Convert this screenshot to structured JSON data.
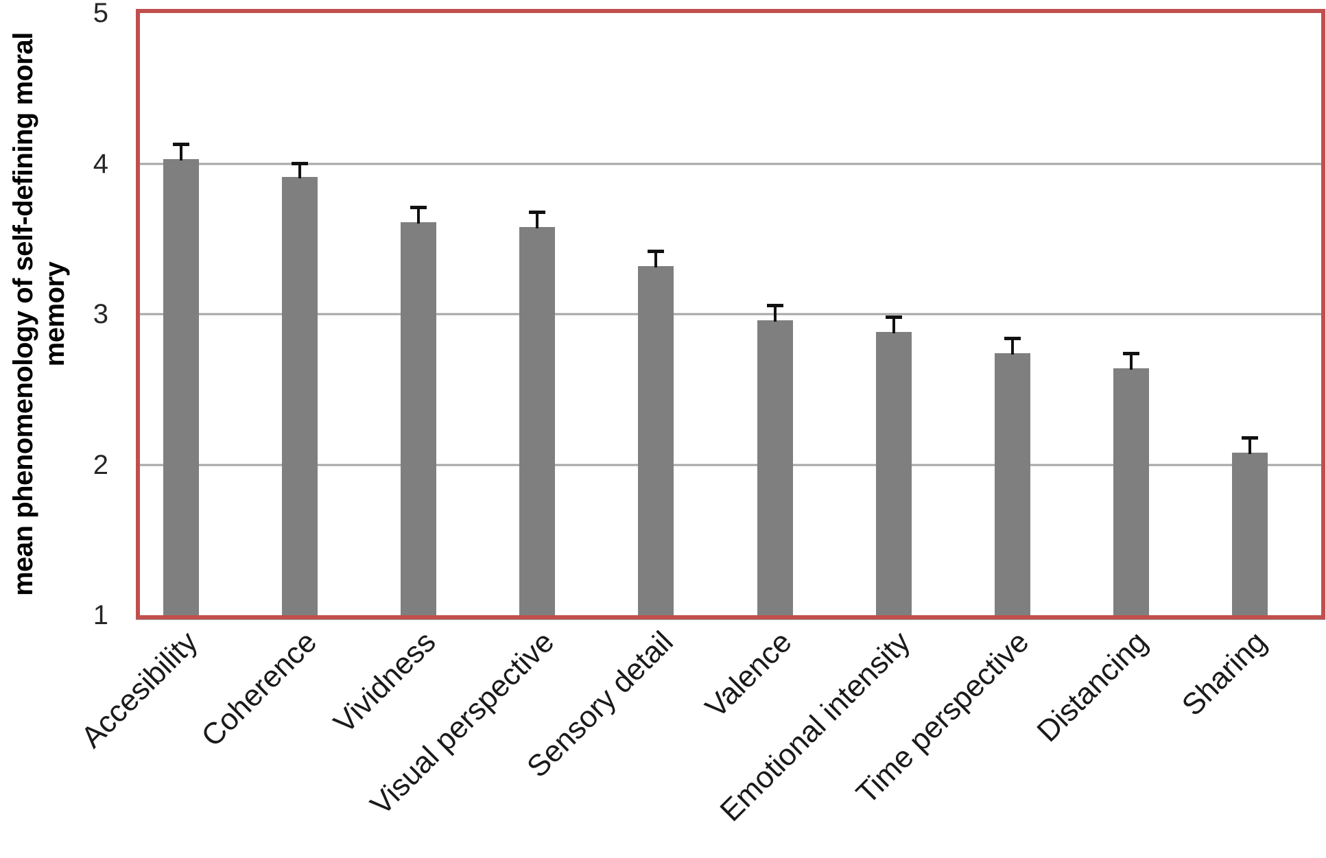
{
  "chart_data": {
    "type": "bar",
    "title": "",
    "ylabel_line1": "mean phenomenology of self-defining moral",
    "ylabel_line2": "memory",
    "xlabel": "",
    "categories": [
      "Accesibility",
      "Coherence",
      "Vividness",
      "Visual perspective",
      "Sensory detail",
      "Valence",
      "Emotional intensity",
      "Time perspective",
      "Distancing",
      "Sharing"
    ],
    "series": [
      {
        "name": "mean phenomenology of self-defining moral memory",
        "values": [
          4.03,
          3.91,
          3.61,
          3.58,
          3.32,
          2.96,
          2.88,
          2.74,
          2.64,
          2.08
        ],
        "errors_plus": [
          0.11,
          0.1,
          0.11,
          0.11,
          0.11,
          0.11,
          0.11,
          0.11,
          0.11,
          0.11
        ]
      }
    ],
    "ylim": [
      1,
      5
    ],
    "yticks": [
      1,
      2,
      3,
      4,
      5
    ],
    "grid": "horizontal gridlines at 2, 3, 4",
    "legend": "none",
    "error_bars": "upper only, capped",
    "x_label_rotation_deg": 45,
    "colors": {
      "bar_fill": "#7F7F7F",
      "gridline": "#A6A6A6",
      "plot_border": "#C0504D",
      "error_bar": "#111111",
      "axis_text": "#262626",
      "background": "#FFFFFF"
    }
  }
}
